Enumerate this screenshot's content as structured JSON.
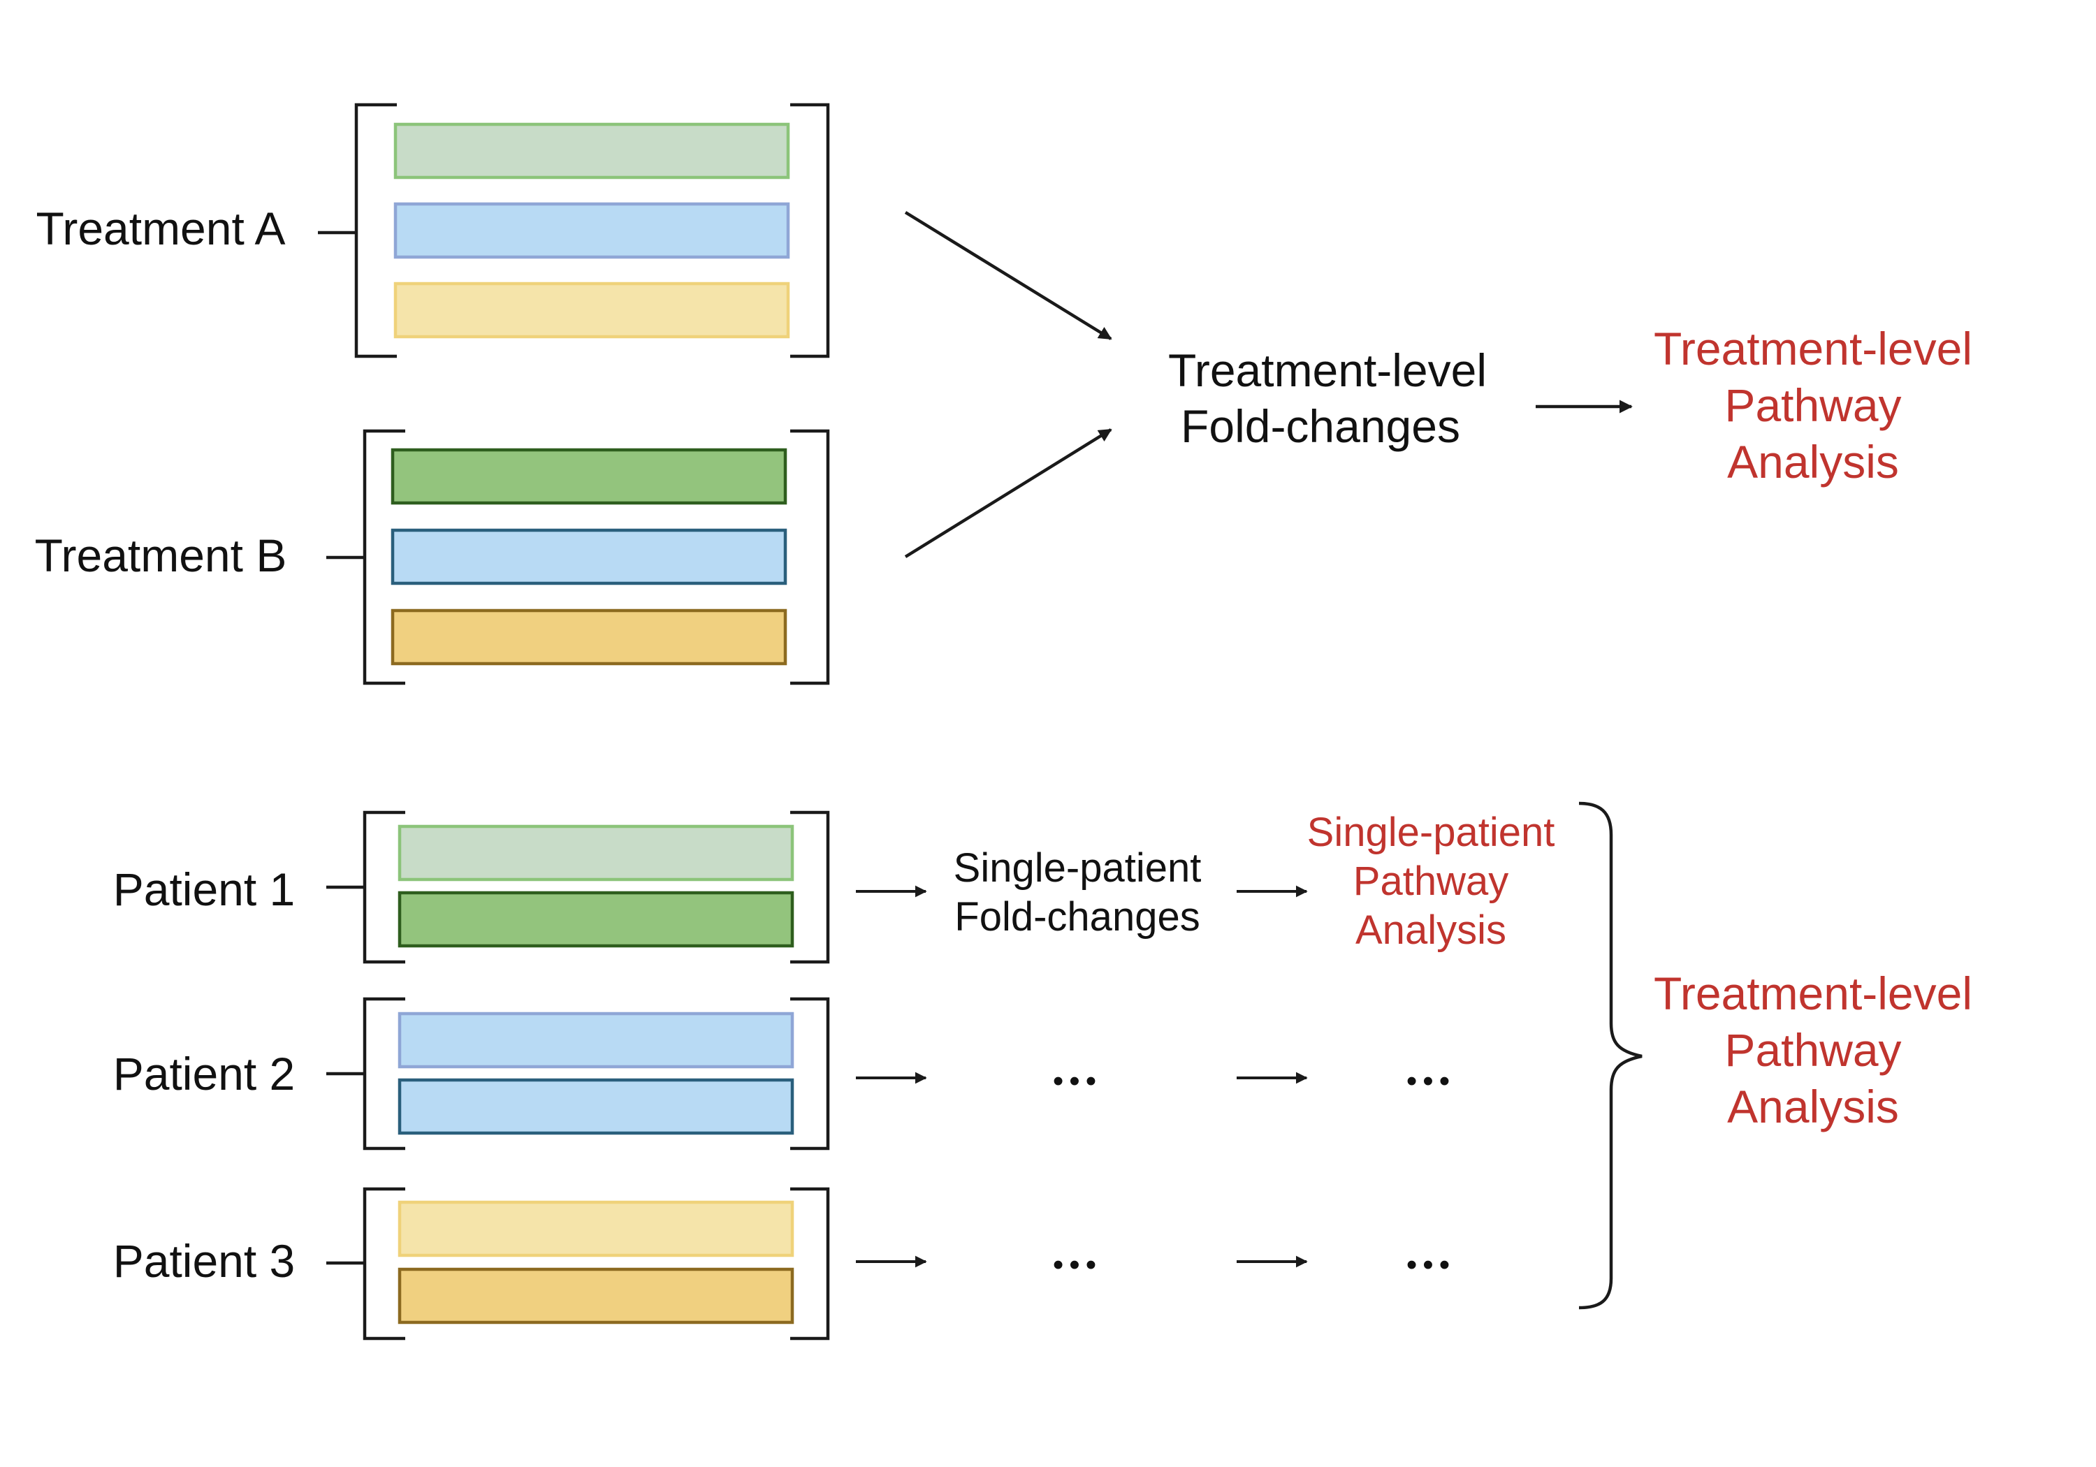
{
  "groups": {
    "treatment_a": "Treatment A",
    "treatment_b": "Treatment B",
    "patient_1": "Patient 1",
    "patient_2": "Patient 2",
    "patient_3": "Patient 3"
  },
  "top_flow": {
    "foldchange_line1": "Treatment-level",
    "foldchange_line2": "Fold-changes",
    "pathway_line1": "Treatment-level",
    "pathway_line2": "Pathway",
    "pathway_line3": "Analysis"
  },
  "bottom_flow": {
    "single_fc_line1": "Single-patient",
    "single_fc_line2": "Fold-changes",
    "single_pw_line1": "Single-patient",
    "single_pw_line2": "Pathway",
    "single_pw_line3": "Analysis",
    "ellipsis": "•••",
    "summary_line1": "Treatment-level",
    "summary_line2": "Pathway",
    "summary_line3": "Analysis"
  },
  "colors": {
    "green_light": "#c8dcc8",
    "green_light_border": "#8cc47a",
    "green_dark": "#93c47d",
    "green_dark_border": "#2e5e1e",
    "blue": "#b8daf4",
    "blue_border_a": "#8fa6d6",
    "blue_border_b": "#2a5f7c",
    "yellow_light": "#f5e4aa",
    "yellow_light_border": "#efd27a",
    "yellow_dark": "#f0d080",
    "yellow_dark_border": "#8c6a20",
    "red_text": "#c0342e"
  }
}
